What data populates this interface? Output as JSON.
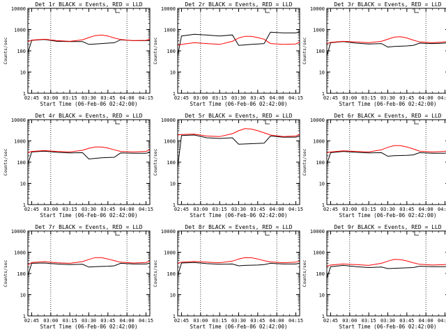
{
  "chart_data": [
    {
      "type": "line",
      "title": "Det 1r BLACK = Events, RED = LLD",
      "xlabel": "Start Time (06-Feb-06 02:42:00)",
      "ylabel": "Counts/sec",
      "yscale": "log",
      "ylim": [
        1,
        10000
      ],
      "x_ticks": [
        "02:45",
        "03:00",
        "03:15",
        "03:30",
        "03:45",
        "04:00",
        "04:15"
      ],
      "y_ticks": [
        "1",
        "10",
        "100",
        "1000",
        "10000"
      ],
      "vlines": [
        "03:00",
        "04:00"
      ],
      "x": [
        "02:42",
        "02:45",
        "02:55",
        "03:05",
        "03:15",
        "03:25",
        "03:30",
        "03:35",
        "03:40",
        "03:45",
        "03:50",
        "03:55",
        "04:05",
        "04:15",
        "04:18"
      ],
      "series": [
        {
          "color": "#000000",
          "values": [
            80,
            310,
            340,
            280,
            270,
            270,
            200,
            210,
            220,
            230,
            240,
            330,
            300,
            300,
            310
          ]
        },
        {
          "color": "#ff0000",
          "values": [
            270,
            320,
            350,
            300,
            280,
            330,
            420,
            520,
            550,
            500,
            400,
            340,
            300,
            310,
            350
          ]
        }
      ]
    },
    {
      "type": "line",
      "title": "Det 2r BLACK = Events, RED = LLD",
      "xlabel": "Start Time (06-Feb-06 02:42:00)",
      "ylabel": "Counts/sec",
      "yscale": "log",
      "ylim": [
        1,
        10000
      ],
      "x_ticks": [
        "02:45",
        "03:00",
        "03:15",
        "03:30",
        "03:45",
        "04:00",
        "04:15"
      ],
      "y_ticks": [
        "1",
        "10",
        "100",
        "1000",
        "10000"
      ],
      "vlines": [
        "03:00",
        "04:00"
      ],
      "x": [
        "02:42",
        "02:45",
        "02:55",
        "03:05",
        "03:15",
        "03:25",
        "03:30",
        "03:35",
        "03:40",
        "03:45",
        "03:50",
        "03:55",
        "04:05",
        "04:15",
        "04:18"
      ],
      "series": [
        {
          "color": "#000000",
          "values": [
            60,
            500,
            600,
            550,
            500,
            560,
            180,
            190,
            200,
            210,
            220,
            750,
            700,
            700,
            780
          ]
        },
        {
          "color": "#ff0000",
          "values": [
            180,
            200,
            240,
            220,
            200,
            280,
            400,
            480,
            480,
            420,
            350,
            220,
            200,
            210,
            260
          ]
        }
      ]
    },
    {
      "type": "line",
      "title": "Det 3r BLACK = Events, RED = LLD",
      "xlabel": "Start Time (06-Feb-06 02:42:00)",
      "ylabel": "Counts/sec",
      "yscale": "log",
      "ylim": [
        1,
        10000
      ],
      "x_ticks": [
        "02:45",
        "03:00",
        "03:15",
        "03:30",
        "03:45",
        "04:00",
        "04:15"
      ],
      "y_ticks": [
        "1",
        "10",
        "100",
        "1000",
        "10000"
      ],
      "vlines": [
        "03:00",
        "04:00"
      ],
      "x": [
        "02:42",
        "02:45",
        "02:55",
        "03:05",
        "03:15",
        "03:25",
        "03:30",
        "03:35",
        "03:40",
        "03:45",
        "03:50",
        "03:55",
        "04:05",
        "04:15",
        "04:18"
      ],
      "series": [
        {
          "color": "#000000",
          "values": [
            60,
            240,
            270,
            230,
            210,
            220,
            150,
            160,
            165,
            170,
            180,
            230,
            220,
            230,
            260
          ]
        },
        {
          "color": "#ff0000",
          "values": [
            220,
            250,
            280,
            260,
            240,
            280,
            350,
            440,
            460,
            400,
            320,
            260,
            240,
            260,
            300
          ]
        }
      ]
    },
    {
      "type": "line",
      "title": "Det 4r BLACK = Events, RED = LLD",
      "xlabel": "Start Time (06-Feb-06 02:42:00)",
      "ylabel": "Counts/sec",
      "yscale": "log",
      "ylim": [
        1,
        10000
      ],
      "x_ticks": [
        "02:45",
        "03:00",
        "03:15",
        "03:30",
        "03:45",
        "04:00",
        "04:15"
      ],
      "y_ticks": [
        "1",
        "10",
        "100",
        "1000",
        "10000"
      ],
      "vlines": [
        "03:00",
        "04:00"
      ],
      "x": [
        "02:42",
        "02:45",
        "02:55",
        "03:05",
        "03:15",
        "03:25",
        "03:30",
        "03:35",
        "03:40",
        "03:45",
        "03:50",
        "03:55",
        "04:05",
        "04:15",
        "04:18"
      ],
      "series": [
        {
          "color": "#000000",
          "values": [
            80,
            300,
            330,
            290,
            270,
            280,
            140,
            150,
            160,
            165,
            170,
            270,
            260,
            260,
            290
          ]
        },
        {
          "color": "#ff0000",
          "values": [
            280,
            320,
            350,
            320,
            300,
            360,
            450,
            520,
            520,
            460,
            380,
            320,
            300,
            320,
            380
          ]
        }
      ]
    },
    {
      "type": "line",
      "title": "Det 5r BLACK = Events, RED = LLD",
      "xlabel": "Start Time (06-Feb-06 02:42:00)",
      "ylabel": "Counts/sec",
      "yscale": "log",
      "ylim": [
        1,
        10000
      ],
      "x_ticks": [
        "02:45",
        "03:00",
        "03:15",
        "03:30",
        "03:45",
        "04:00",
        "04:15"
      ],
      "y_ticks": [
        "1",
        "10",
        "100",
        "1000",
        "10000"
      ],
      "vlines": [
        "03:00",
        "04:00"
      ],
      "x": [
        "02:42",
        "02:45",
        "02:55",
        "03:05",
        "03:15",
        "03:25",
        "03:30",
        "03:35",
        "03:40",
        "03:45",
        "03:50",
        "03:55",
        "04:05",
        "04:15",
        "04:18"
      ],
      "series": [
        {
          "color": "#000000",
          "values": [
            60,
            1800,
            1900,
            1400,
            1300,
            1400,
            700,
            720,
            740,
            760,
            780,
            1700,
            1500,
            1500,
            1700
          ]
        },
        {
          "color": "#ff0000",
          "values": [
            1900,
            2000,
            2100,
            1700,
            1600,
            2200,
            3000,
            3800,
            3600,
            3000,
            2400,
            1900,
            1600,
            1700,
            2000
          ]
        }
      ]
    },
    {
      "type": "line",
      "title": "Det 6r BLACK = Events, RED = LLD",
      "xlabel": "Start Time (06-Feb-06 02:42:00)",
      "ylabel": "Counts/sec",
      "yscale": "log",
      "ylim": [
        1,
        10000
      ],
      "x_ticks": [
        "02:45",
        "03:00",
        "03:15",
        "03:30",
        "03:45",
        "04:00",
        "04:15"
      ],
      "y_ticks": [
        "1",
        "10",
        "100",
        "1000",
        "10000"
      ],
      "vlines": [
        "03:00",
        "04:00"
      ],
      "x": [
        "02:42",
        "02:45",
        "02:55",
        "03:05",
        "03:15",
        "03:25",
        "03:30",
        "03:35",
        "03:40",
        "03:45",
        "03:50",
        "03:55",
        "04:05",
        "04:15",
        "04:18"
      ],
      "series": [
        {
          "color": "#000000",
          "values": [
            80,
            280,
            320,
            290,
            270,
            280,
            190,
            200,
            205,
            210,
            220,
            280,
            260,
            260,
            300
          ]
        },
        {
          "color": "#ff0000",
          "values": [
            280,
            300,
            340,
            320,
            300,
            380,
            500,
            600,
            600,
            520,
            420,
            330,
            300,
            320,
            380
          ]
        }
      ]
    },
    {
      "type": "line",
      "title": "Det 7r BLACK = Events, RED = LLD",
      "xlabel": "Start Time (06-Feb-06 02:42:00)",
      "ylabel": "Counts/sec",
      "yscale": "log",
      "ylim": [
        1,
        10000
      ],
      "x_ticks": [
        "02:45",
        "03:00",
        "03:15",
        "03:30",
        "03:45",
        "04:00",
        "04:15"
      ],
      "y_ticks": [
        "1",
        "10",
        "100",
        "1000",
        "10000"
      ],
      "vlines": [
        "03:00",
        "04:00"
      ],
      "x": [
        "02:42",
        "02:45",
        "02:55",
        "03:05",
        "03:15",
        "03:25",
        "03:30",
        "03:35",
        "03:40",
        "03:45",
        "03:50",
        "03:55",
        "04:05",
        "04:15",
        "04:18"
      ],
      "series": [
        {
          "color": "#000000",
          "values": [
            80,
            300,
            310,
            280,
            260,
            270,
            200,
            210,
            215,
            220,
            230,
            300,
            280,
            280,
            300
          ]
        },
        {
          "color": "#ff0000",
          "values": [
            250,
            330,
            360,
            320,
            300,
            360,
            460,
            560,
            560,
            480,
            400,
            340,
            310,
            330,
            380
          ]
        }
      ]
    },
    {
      "type": "line",
      "title": "Det 8r BLACK = Events, RED = LLD",
      "xlabel": "Start Time (06-Feb-06 02:42:00)",
      "ylabel": "Counts/sec",
      "yscale": "log",
      "ylim": [
        1,
        10000
      ],
      "x_ticks": [
        "02:45",
        "03:00",
        "03:15",
        "03:30",
        "03:45",
        "04:00",
        "04:15"
      ],
      "y_ticks": [
        "1",
        "10",
        "100",
        "1000",
        "10000"
      ],
      "vlines": [
        "03:00",
        "04:00"
      ],
      "x": [
        "02:42",
        "02:45",
        "02:55",
        "03:05",
        "03:15",
        "03:25",
        "03:30",
        "03:35",
        "03:40",
        "03:45",
        "03:50",
        "03:55",
        "04:05",
        "04:15",
        "04:18"
      ],
      "series": [
        {
          "color": "#000000",
          "values": [
            80,
            310,
            330,
            290,
            270,
            280,
            230,
            240,
            245,
            250,
            260,
            300,
            280,
            280,
            300
          ]
        },
        {
          "color": "#ff0000",
          "values": [
            300,
            340,
            370,
            340,
            320,
            380,
            480,
            560,
            550,
            480,
            400,
            350,
            320,
            340,
            380
          ]
        }
      ]
    },
    {
      "type": "line",
      "title": "Det 9r BLACK = Events, RED = LLD",
      "xlabel": "Start Time (06-Feb-06 02:42:00)",
      "ylabel": "Counts/sec",
      "yscale": "log",
      "ylim": [
        1,
        10000
      ],
      "x_ticks": [
        "02:45",
        "03:00",
        "03:15",
        "03:30",
        "03:45",
        "04:00",
        "04:15"
      ],
      "y_ticks": [
        "1",
        "10",
        "100",
        "1000",
        "10000"
      ],
      "vlines": [
        "03:00",
        "04:00"
      ],
      "x": [
        "02:42",
        "02:45",
        "02:55",
        "03:05",
        "03:15",
        "03:25",
        "03:30",
        "03:35",
        "03:40",
        "03:45",
        "03:50",
        "03:55",
        "04:05",
        "04:15",
        "04:18"
      ],
      "series": [
        {
          "color": "#000000",
          "values": [
            60,
            210,
            240,
            210,
            190,
            200,
            170,
            175,
            180,
            185,
            190,
            220,
            210,
            210,
            230
          ]
        },
        {
          "color": "#ff0000",
          "values": [
            220,
            250,
            280,
            260,
            240,
            300,
            380,
            460,
            450,
            390,
            320,
            270,
            250,
            260,
            300
          ]
        }
      ]
    }
  ]
}
